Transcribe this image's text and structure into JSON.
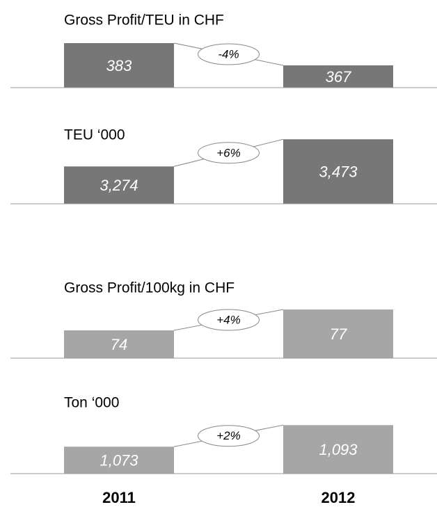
{
  "categories": [
    "2011",
    "2012"
  ],
  "chart_data": [
    {
      "type": "bar",
      "title": "Gross Profit/TEU in CHF",
      "values": [
        383,
        367
      ],
      "annotation": "-4%",
      "color": "#777777",
      "ylim": [
        351,
        386
      ]
    },
    {
      "type": "bar",
      "title": "TEU ‘000",
      "values": [
        3274,
        3473
      ],
      "value_labels": [
        "3,274",
        "3,473"
      ],
      "annotation": "+6%",
      "color": "#777777",
      "ylim": [
        3000,
        3500
      ]
    },
    {
      "type": "bar",
      "title": "Gross Profit/100kg in CHF",
      "values": [
        74,
        77
      ],
      "annotation": "+4%",
      "color": "#a6a6a6",
      "ylim": [
        70,
        78
      ]
    },
    {
      "type": "bar",
      "title": "Ton ‘000",
      "values": [
        1073,
        1093
      ],
      "value_labels": [
        "1,073",
        "1,093"
      ],
      "annotation": "+2%",
      "color": "#a6a6a6",
      "ylim": [
        1048,
        1098
      ]
    }
  ]
}
